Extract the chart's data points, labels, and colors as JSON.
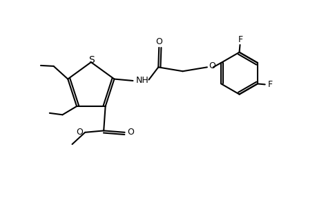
{
  "background_color": "#ffffff",
  "line_color": "#000000",
  "line_width": 1.5,
  "font_size": 9,
  "figsize": [
    4.6,
    3.0
  ],
  "dpi": 100,
  "S_label": "S",
  "NH_label": "NH",
  "O_label": "O",
  "F_label": "F"
}
